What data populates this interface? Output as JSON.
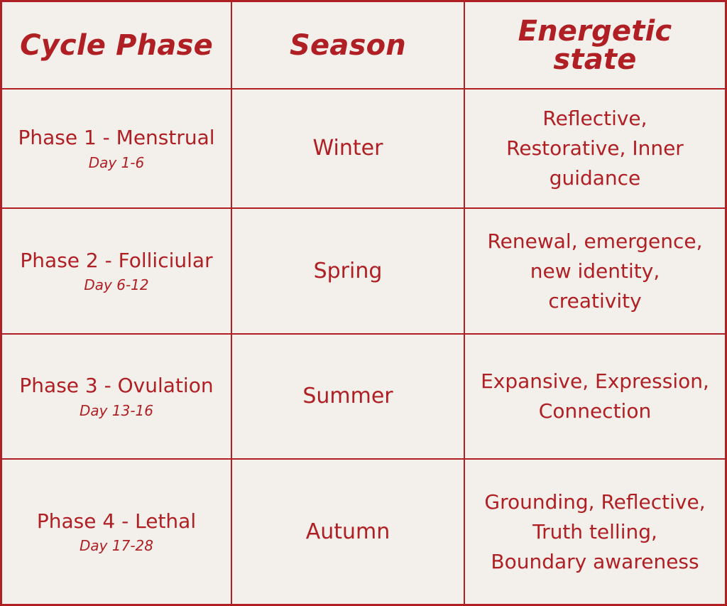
{
  "table": {
    "headers": [
      "Cycle Phase",
      "Season",
      "Energetic state"
    ],
    "rows": [
      {
        "phase": "Phase 1 - Menstrual",
        "day": "Day 1-6",
        "season": "Winter",
        "energy_lines": [
          "Reflective,",
          "Restorative, Inner",
          "guidance"
        ]
      },
      {
        "phase": "Phase 2 - Folliciular",
        "day": "Day 6-12",
        "season": "Spring",
        "energy_lines": [
          "Renewal, emergence,",
          "new identity,",
          "creativity"
        ]
      },
      {
        "phase": "Phase 3 - Ovulation",
        "day": "Day 13-16",
        "season": "Summer",
        "energy_lines": [
          "Expansive, Expression,",
          "Connection"
        ]
      },
      {
        "phase": "Phase 4 - Lethal",
        "day": "Day 17-28",
        "season": "Autumn",
        "energy_lines": [
          "Grounding, Reflective,",
          "Truth telling,",
          "Boundary awareness"
        ]
      }
    ]
  },
  "colors": {
    "accent": "#b01f24",
    "background": "#f3efea"
  }
}
